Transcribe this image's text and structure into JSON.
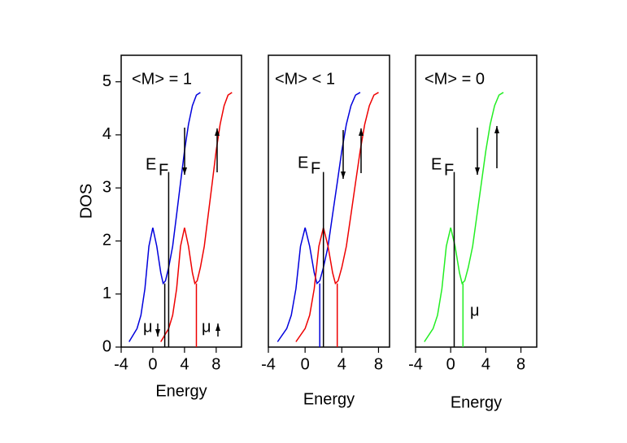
{
  "chart_data": [
    {
      "type": "line",
      "y_label": "DOS",
      "x_label": "Energy",
      "xlim": [
        -4,
        11.2
      ],
      "ylim": [
        0,
        5.5
      ],
      "xticks": [
        -4,
        0,
        4,
        8
      ],
      "yticks": [
        0,
        1,
        2,
        3,
        4,
        5
      ],
      "annotations": [
        "<M> = 1",
        "E",
        "F",
        "μ",
        "μ"
      ],
      "series": [
        {
          "color": "#0000dd",
          "x": [
            -3,
            -2,
            -1.5,
            -1,
            -0.5,
            0,
            0.5,
            1,
            1.3,
            1.6,
            2,
            2.5,
            3,
            3.5,
            4,
            4.5,
            5,
            5.5,
            6
          ],
          "values": [
            0.1,
            0.35,
            0.6,
            1.1,
            1.9,
            2.25,
            1.9,
            1.4,
            1.2,
            1.25,
            1.5,
            1.9,
            2.5,
            3.1,
            3.7,
            4.2,
            4.55,
            4.75,
            4.8
          ]
        },
        {
          "color": "#ee0000",
          "x": [
            1,
            2,
            2.5,
            3,
            3.5,
            4,
            4.5,
            5,
            5.3,
            5.6,
            6,
            6.5,
            7,
            7.5,
            8,
            8.5,
            9,
            9.5,
            10
          ],
          "values": [
            0.1,
            0.35,
            0.6,
            1.1,
            1.9,
            2.25,
            1.9,
            1.4,
            1.2,
            1.25,
            1.5,
            1.9,
            2.5,
            3.1,
            3.7,
            4.2,
            4.55,
            4.75,
            4.8
          ]
        },
        {
          "color": "#000000",
          "x": [
            2,
            2
          ],
          "values": [
            0,
            3.3
          ]
        },
        {
          "color": "#000000",
          "x": [
            1.5,
            1.5
          ],
          "values": [
            0,
            1.2
          ]
        },
        {
          "color": "#ee0000",
          "x": [
            5.5,
            5.5
          ],
          "values": [
            0,
            1.2
          ]
        }
      ]
    },
    {
      "type": "line",
      "x_label": "Energy",
      "xlim": [
        -4,
        9.2
      ],
      "ylim": [
        0,
        5.5
      ],
      "xticks": [
        -4,
        0,
        4,
        8
      ],
      "annotations": [
        "<M> < 1",
        "E",
        "F"
      ],
      "series": [
        {
          "color": "#0000dd",
          "x": [
            -3,
            -2,
            -1.5,
            -1,
            -0.5,
            0,
            0.5,
            1,
            1.3,
            1.6,
            2,
            2.5,
            3,
            3.5,
            4,
            4.5,
            5,
            5.5,
            6
          ],
          "values": [
            0.1,
            0.35,
            0.6,
            1.1,
            1.9,
            2.25,
            1.9,
            1.4,
            1.2,
            1.25,
            1.5,
            1.9,
            2.5,
            3.1,
            3.7,
            4.2,
            4.55,
            4.75,
            4.8
          ]
        },
        {
          "color": "#ee0000",
          "x": [
            -1,
            0,
            0.5,
            1,
            1.5,
            2,
            2.5,
            3,
            3.3,
            3.6,
            4,
            4.5,
            5,
            5.5,
            6,
            6.5,
            7,
            7.5,
            8
          ],
          "values": [
            0.1,
            0.35,
            0.6,
            1.1,
            1.9,
            2.25,
            1.9,
            1.4,
            1.2,
            1.25,
            1.5,
            1.9,
            2.5,
            3.1,
            3.7,
            4.2,
            4.55,
            4.75,
            4.8
          ]
        },
        {
          "color": "#000000",
          "x": [
            2,
            2
          ],
          "values": [
            0,
            3.3
          ]
        },
        {
          "color": "#0000dd",
          "x": [
            1.6,
            1.6
          ],
          "values": [
            0,
            1.2
          ]
        },
        {
          "color": "#ee0000",
          "x": [
            3.5,
            3.5
          ],
          "values": [
            0,
            1.2
          ]
        }
      ]
    },
    {
      "type": "line",
      "x_label": "Energy",
      "xlim": [
        -4,
        9.8
      ],
      "ylim": [
        0,
        5.5
      ],
      "xticks": [
        -4,
        0,
        4,
        8
      ],
      "annotations": [
        "<M> = 0",
        "E",
        "F",
        "μ"
      ],
      "series": [
        {
          "color": "#22ee22",
          "x": [
            -3,
            -2,
            -1.5,
            -1,
            -0.5,
            0,
            0.5,
            1,
            1.3,
            1.6,
            2,
            2.5,
            3,
            3.5,
            4,
            4.5,
            5,
            5.5,
            6
          ],
          "values": [
            0.1,
            0.35,
            0.6,
            1.1,
            1.9,
            2.25,
            1.9,
            1.4,
            1.2,
            1.25,
            1.5,
            1.9,
            2.5,
            3.1,
            3.7,
            4.2,
            4.55,
            4.75,
            4.8
          ]
        },
        {
          "color": "#000000",
          "x": [
            0.4,
            0.4
          ],
          "values": [
            0,
            3.3
          ]
        },
        {
          "color": "#22ee22",
          "x": [
            1.4,
            1.4
          ],
          "values": [
            0,
            1.2
          ]
        }
      ]
    }
  ]
}
